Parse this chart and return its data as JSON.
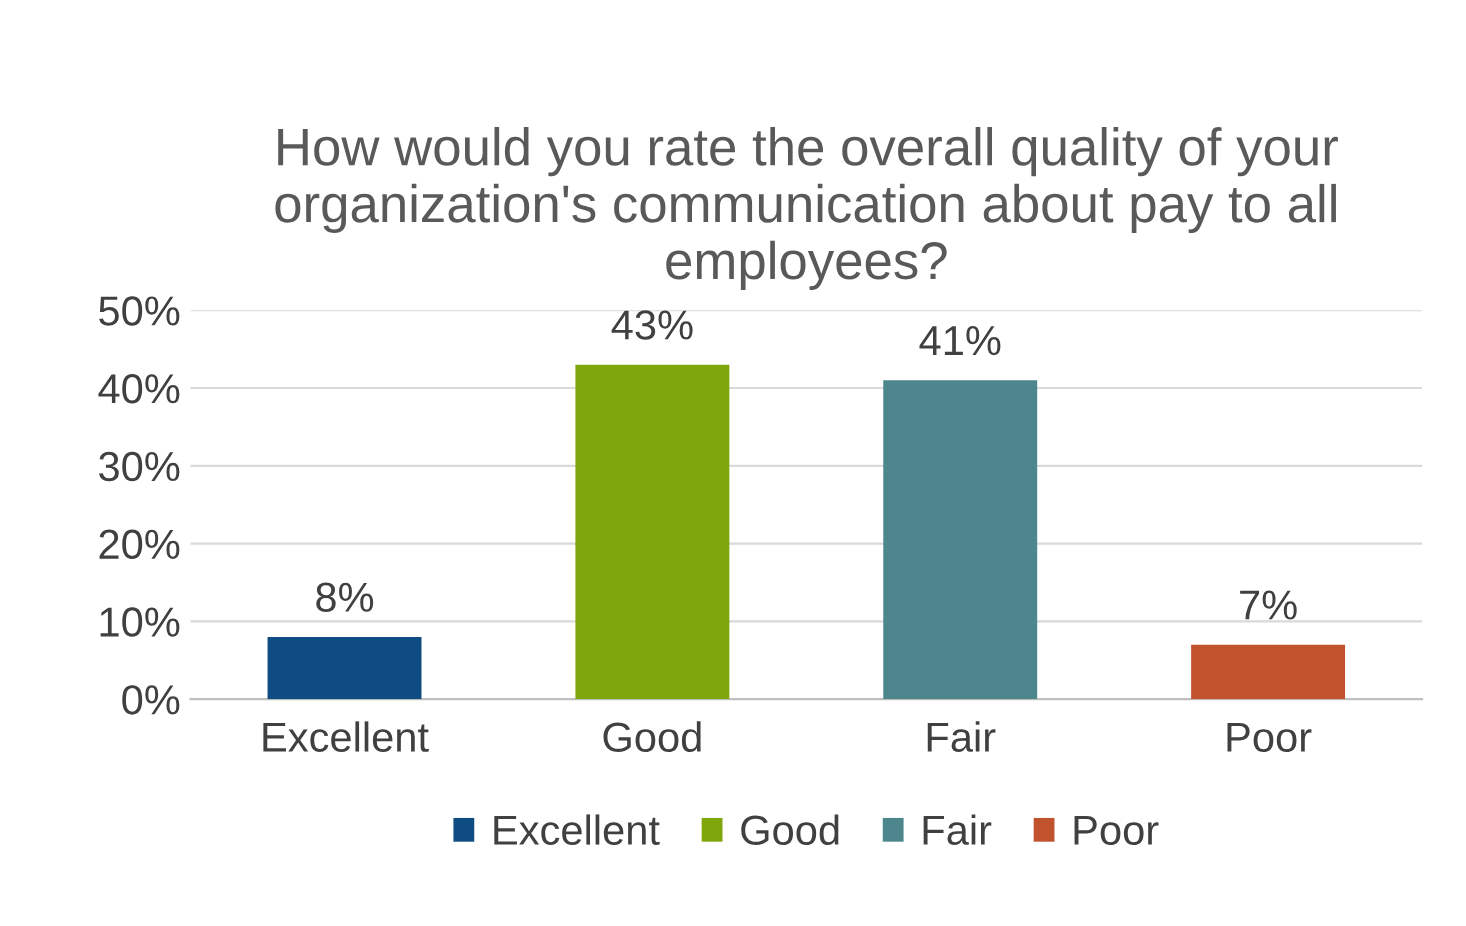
{
  "chart_data": {
    "type": "bar",
    "title": "How would you rate the overall quality of your organization's communication about pay to all employees?",
    "categories": [
      "Excellent",
      "Good",
      "Fair",
      "Poor"
    ],
    "series": [
      {
        "name": "Excellent",
        "color": "#0f4c81",
        "values": [
          8,
          null,
          null,
          null
        ],
        "value_labels": [
          "8%",
          null,
          null,
          null
        ]
      },
      {
        "name": "Good",
        "color": "#7fa60a",
        "values": [
          null,
          43,
          null,
          null
        ],
        "value_labels": [
          null,
          "43%",
          null,
          null
        ]
      },
      {
        "name": "Fair",
        "color": "#4d868c",
        "values": [
          null,
          null,
          41,
          null
        ],
        "value_labels": [
          null,
          null,
          "41%",
          null
        ]
      },
      {
        "name": "Poor",
        "color": "#c0532e",
        "values": [
          null,
          null,
          null,
          7
        ],
        "value_labels": [
          null,
          null,
          null,
          "7%"
        ]
      }
    ],
    "ylim": [
      0,
      50
    ],
    "yticks": [
      {
        "value": 0,
        "label": "0%"
      },
      {
        "value": 10,
        "label": "10%"
      },
      {
        "value": 20,
        "label": "20%"
      },
      {
        "value": 30,
        "label": "30%"
      },
      {
        "value": 40,
        "label": "40%"
      },
      {
        "value": 50,
        "label": "50%"
      }
    ],
    "grid": "y",
    "legend": "bottom"
  }
}
